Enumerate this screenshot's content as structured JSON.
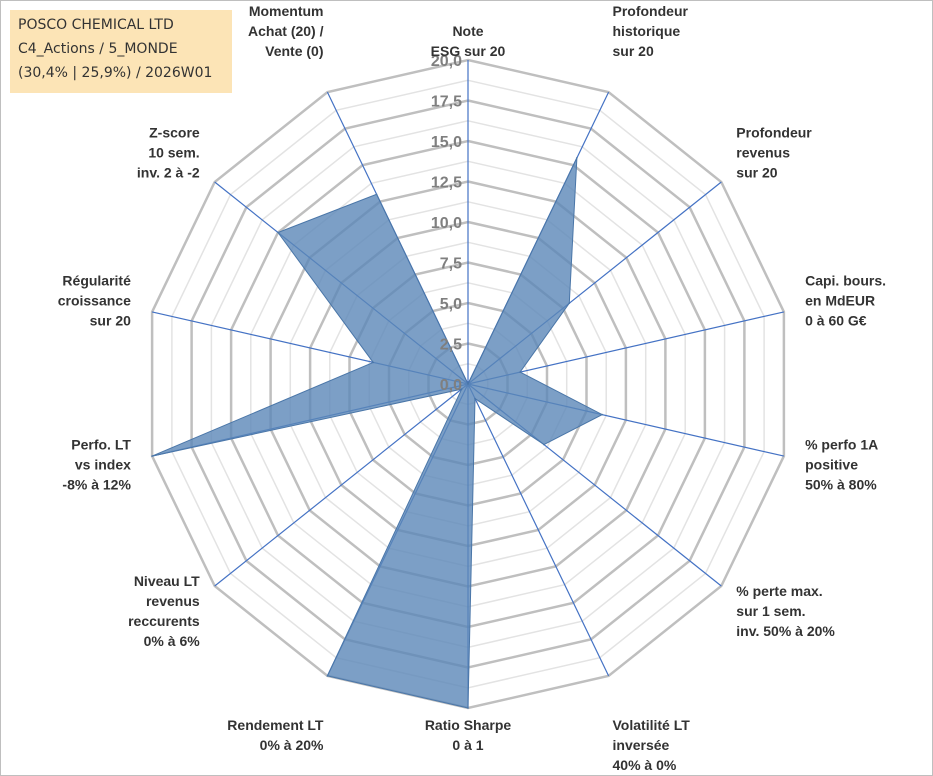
{
  "title_box": {
    "line1": "POSCO CHEMICAL LTD",
    "line2": "C4_Actions / 5_MONDE",
    "line3": "(30,4% | 25,9%) / 2026W01"
  },
  "colors": {
    "fill": "#5b87b8",
    "fill_opacity": 0.8,
    "spoke": "#4472c4",
    "ring": "#bfbfbf",
    "ring_minor": "#e3e3e3",
    "title_bg": "#fce4b6"
  },
  "chart_data": {
    "type": "radar",
    "ylim": [
      0,
      20
    ],
    "ticks": [
      "0,0",
      "2,5",
      "5,0",
      "7,5",
      "10,0",
      "12,5",
      "15,0",
      "17,5",
      "20,0"
    ],
    "tick_values": [
      0,
      2.5,
      5,
      7.5,
      10,
      12.5,
      15,
      17.5,
      20
    ],
    "axes": [
      [
        "Note",
        "ESG sur 20"
      ],
      [
        "Profondeur",
        "historique",
        "sur 20"
      ],
      [
        "Profondeur",
        "revenus",
        "sur 20"
      ],
      [
        "Capi. bours.",
        "en MdEUR",
        "0 à 60 G€"
      ],
      [
        "% perfo 1A",
        "positive",
        "50% à 80%"
      ],
      [
        "% perte max.",
        "sur 1 sem.",
        "inv. 50% à 20%"
      ],
      [
        "Volatilité LT",
        "inversée",
        "40% à 0%"
      ],
      [
        "Ratio Sharpe",
        "0 à 1"
      ],
      [
        "Rendement LT",
        "0% à 20%"
      ],
      [
        "Niveau LT",
        "revenus",
        "reccurents",
        "0% à 6%"
      ],
      [
        "Perfo. LT",
        "vs index",
        "-8% à 12%"
      ],
      [
        "Régularité",
        "croissance",
        "sur 20"
      ],
      [
        "Z-score",
        "10 sem.",
        "inv. 2 à -2"
      ],
      [
        "Momentum",
        "Achat (20) /",
        "Vente (0)"
      ]
    ],
    "series": [
      {
        "values": [
          0,
          15.5,
          8.0,
          3.3,
          8.5,
          6.0,
          1.0,
          20,
          20,
          0.5,
          20,
          6.0,
          15.0,
          13.0
        ]
      }
    ]
  }
}
